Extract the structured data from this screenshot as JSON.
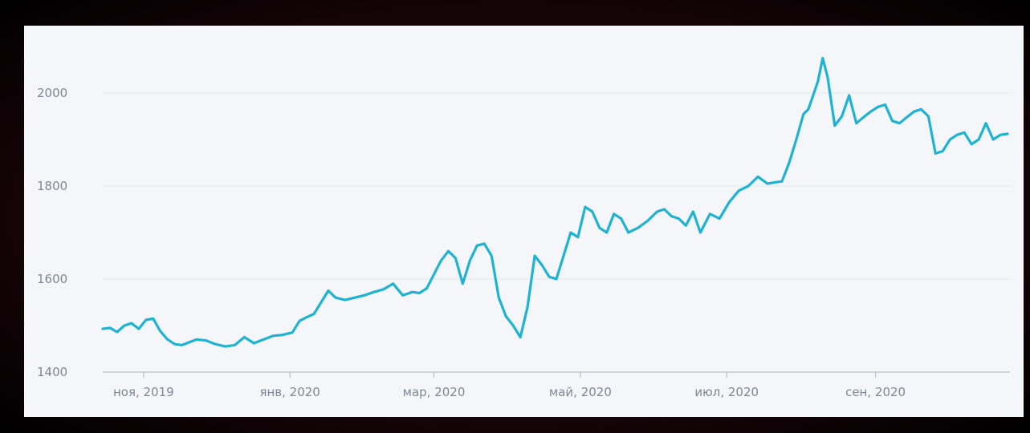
{
  "chart_data": {
    "type": "line",
    "title": "",
    "xlabel": "",
    "ylabel": "",
    "ylim": [
      1400,
      2100
    ],
    "y_ticks": [
      1400,
      1600,
      1800,
      2000
    ],
    "y_tick_labels": [
      "1400",
      "1600",
      "1800",
      "2000"
    ],
    "x_ticks": [
      "2019-11-01",
      "2020-01-01",
      "2020-03-01",
      "2020-05-01",
      "2020-07-01",
      "2020-09-01"
    ],
    "x_tick_labels": [
      "ноя, 2019",
      "янв, 2020",
      "мар, 2020",
      "май, 2020",
      "июл, 2020",
      "сен, 2020"
    ],
    "xlim": [
      "2019-10-15",
      "2020-10-27"
    ],
    "grid": "horizontal",
    "line_color": "#1fb3d1",
    "series": [
      {
        "x": [
          "2019-10-15",
          "2019-10-18",
          "2019-10-21",
          "2019-10-24",
          "2019-10-27",
          "2019-10-30",
          "2019-11-02",
          "2019-11-05",
          "2019-11-08",
          "2019-11-11",
          "2019-11-14",
          "2019-11-17",
          "2019-11-20",
          "2019-11-23",
          "2019-11-27",
          "2019-12-01",
          "2019-12-05",
          "2019-12-09",
          "2019-12-13",
          "2019-12-17",
          "2019-12-21",
          "2019-12-25",
          "2019-12-29",
          "2020-01-02",
          "2020-01-05",
          "2020-01-08",
          "2020-01-11",
          "2020-01-14",
          "2020-01-17",
          "2020-01-20",
          "2020-01-24",
          "2020-01-28",
          "2020-02-01",
          "2020-02-05",
          "2020-02-09",
          "2020-02-13",
          "2020-02-17",
          "2020-02-21",
          "2020-02-24",
          "2020-02-27",
          "2020-03-01",
          "2020-03-04",
          "2020-03-07",
          "2020-03-10",
          "2020-03-13",
          "2020-03-16",
          "2020-03-19",
          "2020-03-22",
          "2020-03-25",
          "2020-03-28",
          "2020-03-31",
          "2020-04-03",
          "2020-04-06",
          "2020-04-09",
          "2020-04-12",
          "2020-04-15",
          "2020-04-18",
          "2020-04-21",
          "2020-04-24",
          "2020-04-27",
          "2020-04-30",
          "2020-05-03",
          "2020-05-06",
          "2020-05-09",
          "2020-05-12",
          "2020-05-15",
          "2020-05-18",
          "2020-05-21",
          "2020-05-25",
          "2020-05-29",
          "2020-06-02",
          "2020-06-05",
          "2020-06-08",
          "2020-06-11",
          "2020-06-14",
          "2020-06-17",
          "2020-06-20",
          "2020-06-24",
          "2020-06-28",
          "2020-07-02",
          "2020-07-06",
          "2020-07-10",
          "2020-07-14",
          "2020-07-18",
          "2020-07-21",
          "2020-07-24",
          "2020-07-27",
          "2020-07-30",
          "2020-08-02",
          "2020-08-04",
          "2020-08-06",
          "2020-08-08",
          "2020-08-10",
          "2020-08-12",
          "2020-08-15",
          "2020-08-18",
          "2020-08-21",
          "2020-08-24",
          "2020-08-27",
          "2020-08-30",
          "2020-09-02",
          "2020-09-05",
          "2020-09-08",
          "2020-09-11",
          "2020-09-14",
          "2020-09-17",
          "2020-09-20",
          "2020-09-23",
          "2020-09-26",
          "2020-09-29",
          "2020-10-02",
          "2020-10-05",
          "2020-10-08",
          "2020-10-11",
          "2020-10-14",
          "2020-10-17",
          "2020-10-20",
          "2020-10-23",
          "2020-10-26"
        ],
        "values": [
          1493,
          1495,
          1486,
          1500,
          1505,
          1493,
          1512,
          1515,
          1488,
          1470,
          1460,
          1458,
          1464,
          1470,
          1468,
          1460,
          1455,
          1458,
          1475,
          1462,
          1470,
          1478,
          1480,
          1485,
          1510,
          1518,
          1525,
          1550,
          1575,
          1560,
          1555,
          1560,
          1565,
          1572,
          1578,
          1590,
          1565,
          1572,
          1570,
          1580,
          1610,
          1640,
          1660,
          1645,
          1590,
          1640,
          1672,
          1676,
          1650,
          1560,
          1520,
          1500,
          1475,
          1540,
          1650,
          1630,
          1605,
          1600,
          1650,
          1700,
          1690,
          1755,
          1745,
          1710,
          1700,
          1740,
          1730,
          1700,
          1710,
          1725,
          1745,
          1750,
          1735,
          1730,
          1715,
          1745,
          1700,
          1740,
          1730,
          1765,
          1790,
          1800,
          1820,
          1805,
          1808,
          1810,
          1850,
          1900,
          1955,
          1965,
          1995,
          2025,
          2075,
          2035,
          1930,
          1950,
          1995,
          1935,
          1948,
          1960,
          1970,
          1975,
          1940,
          1935,
          1948,
          1960,
          1965,
          1950,
          1870,
          1875,
          1900,
          1910,
          1915,
          1890,
          1900,
          1935,
          1900,
          1910,
          1912
        ]
      }
    ]
  }
}
